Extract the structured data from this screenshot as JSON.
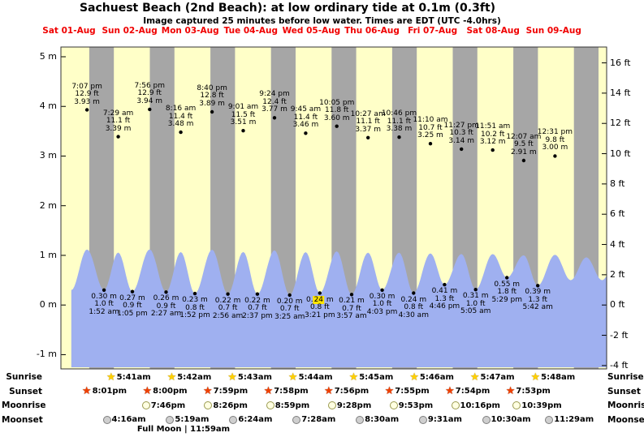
{
  "title": "Sachuest Beach (2nd Beach): at low ordinary tide at 0.1m (0.3ft)",
  "subtitle": "Image captured 25 minutes before low water. Times are EDT (UTC -4.0hrs)",
  "colors": {
    "background": "#ffffc8",
    "night_band": "#a6a6a6",
    "tide_fill": "#9fb0f0",
    "day_label": "#f00000",
    "highlight": "#ffe400",
    "sunrise_star": "#ffd000",
    "sunset_star": "#f04000"
  },
  "chart_data": {
    "type": "area",
    "series_name": "tide height",
    "days": [
      {
        "label": "Sat 01-Aug"
      },
      {
        "label": "Sun 02-Aug"
      },
      {
        "label": "Mon 03-Aug"
      },
      {
        "label": "Tue 04-Aug"
      },
      {
        "label": "Wed 05-Aug"
      },
      {
        "label": "Thu 06-Aug"
      },
      {
        "label": "Fri 07-Aug"
      },
      {
        "label": "Sat 08-Aug"
      },
      {
        "label": "Sun 09-Aug"
      }
    ],
    "left_ticks": [
      "5 m",
      "4 m",
      "3 m",
      "2 m",
      "1 m",
      "0 m",
      "-1 m"
    ],
    "right_ticks": [
      "16 ft",
      "14 ft",
      "12 ft",
      "10 ft",
      "8 ft",
      "6 ft",
      "4 ft",
      "2 ft",
      "0 ft",
      "-2 ft",
      "-4 ft"
    ],
    "ylim_m": [
      -1.3,
      5.2
    ],
    "highs": [
      {
        "day": 0,
        "time": "7:07 pm",
        "ft": "12.9 ft",
        "m": "3.93 m"
      },
      {
        "day": 1,
        "time": "7:29 am",
        "ft": "11.1 ft",
        "m": "3.39 m"
      },
      {
        "day": 1,
        "time": "7:56 pm",
        "ft": "12.9 ft",
        "m": "3.94 m"
      },
      {
        "day": 2,
        "time": "8:16 am",
        "ft": "11.4 ft",
        "m": "3.48 m"
      },
      {
        "day": 2,
        "time": "8:40 pm",
        "ft": "12.8 ft",
        "m": "3.89 m"
      },
      {
        "day": 3,
        "time": "9:01 am",
        "ft": "11.5 ft",
        "m": "3.51 m"
      },
      {
        "day": 3,
        "time": "9:24 pm",
        "ft": "12.4 ft",
        "m": "3.77 m"
      },
      {
        "day": 4,
        "time": "9:45 am",
        "ft": "11.4 ft",
        "m": "3.46 m"
      },
      {
        "day": 4,
        "time": "10:05 pm",
        "ft": "11.8 ft",
        "m": "3.60 m"
      },
      {
        "day": 5,
        "time": "10:27 am",
        "ft": "11.1 ft",
        "m": "3.37 m"
      },
      {
        "day": 5,
        "time": "10:46 pm",
        "ft": "11.1 ft",
        "m": "3.38 m"
      },
      {
        "day": 6,
        "time": "11:10 am",
        "ft": "10.7 ft",
        "m": "3.25 m"
      },
      {
        "day": 6,
        "time": "11:27 pm",
        "ft": "10.3 ft",
        "m": "3.14 m"
      },
      {
        "day": 7,
        "time": "11:51 am",
        "ft": "10.2 ft",
        "m": "3.12 m"
      },
      {
        "day": 8,
        "time": "12:07 am",
        "ft": "9.5 ft",
        "m": "2.91 m"
      },
      {
        "day": 8,
        "time": "12:31 pm",
        "ft": "9.8 ft",
        "m": "3.00 m"
      }
    ],
    "lows": [
      {
        "day": 1,
        "m": "0.30 m",
        "ft": "1.0 ft",
        "time": "1:52 am"
      },
      {
        "day": 1,
        "m": "0.27 m",
        "ft": "0.9 ft",
        "time": "1:05 pm"
      },
      {
        "day": 2,
        "m": "0.26 m",
        "ft": "0.9 ft",
        "time": "2:27 am"
      },
      {
        "day": 2,
        "m": "0.23 m",
        "ft": "0.8 ft",
        "time": "1:52 pm"
      },
      {
        "day": 3,
        "m": "0.22 m",
        "ft": "0.7 ft",
        "time": "2:56 am"
      },
      {
        "day": 3,
        "m": "0.22 m",
        "ft": "0.7 ft",
        "time": "2:37 pm"
      },
      {
        "day": 4,
        "m": "0.20 m",
        "ft": "0.7 ft",
        "time": "3:25 am"
      },
      {
        "day": 4,
        "m": "0.24 m",
        "ft": "0.8 ft",
        "time": "3:21 pm",
        "highlight": true
      },
      {
        "day": 5,
        "m": "0.21 m",
        "ft": "0.7 ft",
        "time": "3:57 am"
      },
      {
        "day": 5,
        "m": "0.30 m",
        "ft": "1.0 ft",
        "time": "4:03 pm"
      },
      {
        "day": 6,
        "m": "0.24 m",
        "ft": "0.8 ft",
        "time": "4:30 am"
      },
      {
        "day": 6,
        "m": "0.41 m",
        "ft": "1.3 ft",
        "time": "4:46 pm"
      },
      {
        "day": 7,
        "m": "0.31 m",
        "ft": "1.0 ft",
        "time": "5:05 am"
      },
      {
        "day": 7,
        "m": "0.55 m",
        "ft": "1.8 ft",
        "time": "5:29 pm"
      },
      {
        "day": 8,
        "m": "0.39 m",
        "ft": "1.3 ft",
        "time": "5:42 am"
      }
    ]
  },
  "sun_moon": {
    "rows": [
      {
        "label": "Sunrise",
        "icon": "sunrise-star",
        "entries": [
          {
            "day": 1,
            "time": "5:41am"
          },
          {
            "day": 2,
            "time": "5:42am"
          },
          {
            "day": 3,
            "time": "5:43am"
          },
          {
            "day": 4,
            "time": "5:44am"
          },
          {
            "day": 5,
            "time": "5:45am"
          },
          {
            "day": 6,
            "time": "5:46am"
          },
          {
            "day": 7,
            "time": "5:47am"
          },
          {
            "day": 8,
            "time": "5:48am"
          }
        ]
      },
      {
        "label": "Sunset",
        "icon": "sunset-star",
        "entries": [
          {
            "day": 0,
            "time": "8:01pm"
          },
          {
            "day": 1,
            "time": "8:00pm"
          },
          {
            "day": 2,
            "time": "7:59pm"
          },
          {
            "day": 3,
            "time": "7:58pm"
          },
          {
            "day": 4,
            "time": "7:56pm"
          },
          {
            "day": 5,
            "time": "7:55pm"
          },
          {
            "day": 6,
            "time": "7:54pm"
          },
          {
            "day": 7,
            "time": "7:53pm"
          }
        ]
      },
      {
        "label": "Moonrise",
        "icon": "moonrise-circle",
        "entries": [
          {
            "day": 1,
            "time": "7:46pm"
          },
          {
            "day": 2,
            "time": "8:26pm"
          },
          {
            "day": 3,
            "time": "8:59pm"
          },
          {
            "day": 4,
            "time": "9:28pm"
          },
          {
            "day": 5,
            "time": "9:53pm"
          },
          {
            "day": 6,
            "time": "10:16pm"
          },
          {
            "day": 7,
            "time": "10:39pm"
          }
        ]
      },
      {
        "label": "Moonset",
        "icon": "moonset-circle",
        "entries": [
          {
            "day": 1,
            "time": "4:16am"
          },
          {
            "day": 2,
            "time": "5:19am"
          },
          {
            "day": 3,
            "time": "6:24am"
          },
          {
            "day": 4,
            "time": "7:28am"
          },
          {
            "day": 5,
            "time": "8:30am"
          },
          {
            "day": 6,
            "time": "9:31am"
          },
          {
            "day": 7,
            "time": "10:30am"
          },
          {
            "day": 8,
            "time": "11:29am"
          }
        ]
      }
    ],
    "note": "Full Moon | 11:59am"
  }
}
